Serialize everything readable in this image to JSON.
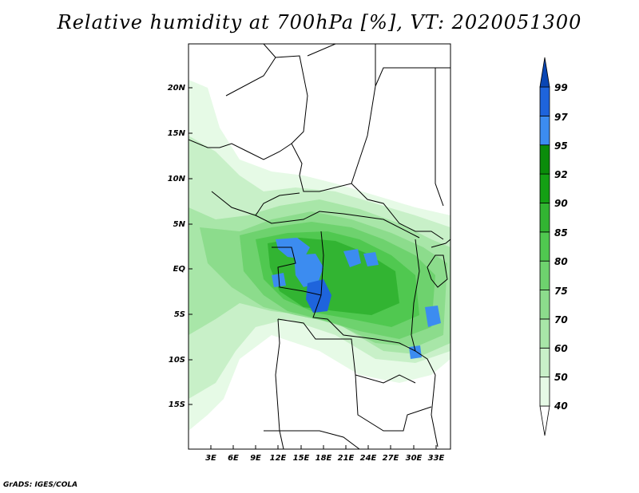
{
  "title": "Relative humidity at 700hPa [%], VT: 2020051300",
  "credit": "GrADS: IGES/COLA",
  "axes": {
    "lat_labels": [
      "20N",
      "15N",
      "10N",
      "5N",
      "EQ",
      "5S",
      "10S",
      "15S"
    ],
    "lon_labels": [
      "3E",
      "6E",
      "9E",
      "12E",
      "15E",
      "18E",
      "21E",
      "24E",
      "27E",
      "30E",
      "33E"
    ]
  },
  "colorbar": {
    "levels": [
      "40",
      "50",
      "60",
      "70",
      "75",
      "80",
      "85",
      "90",
      "92",
      "95",
      "97",
      "99"
    ],
    "colors": [
      "#ffffff",
      "#e6fae6",
      "#c8f0c8",
      "#a8e6a8",
      "#8cdc8c",
      "#6ed26e",
      "#50c850",
      "#32b432",
      "#14a014",
      "#0a8c0a",
      "#3c8cf0",
      "#1e64dc",
      "#0a46b4"
    ]
  }
}
